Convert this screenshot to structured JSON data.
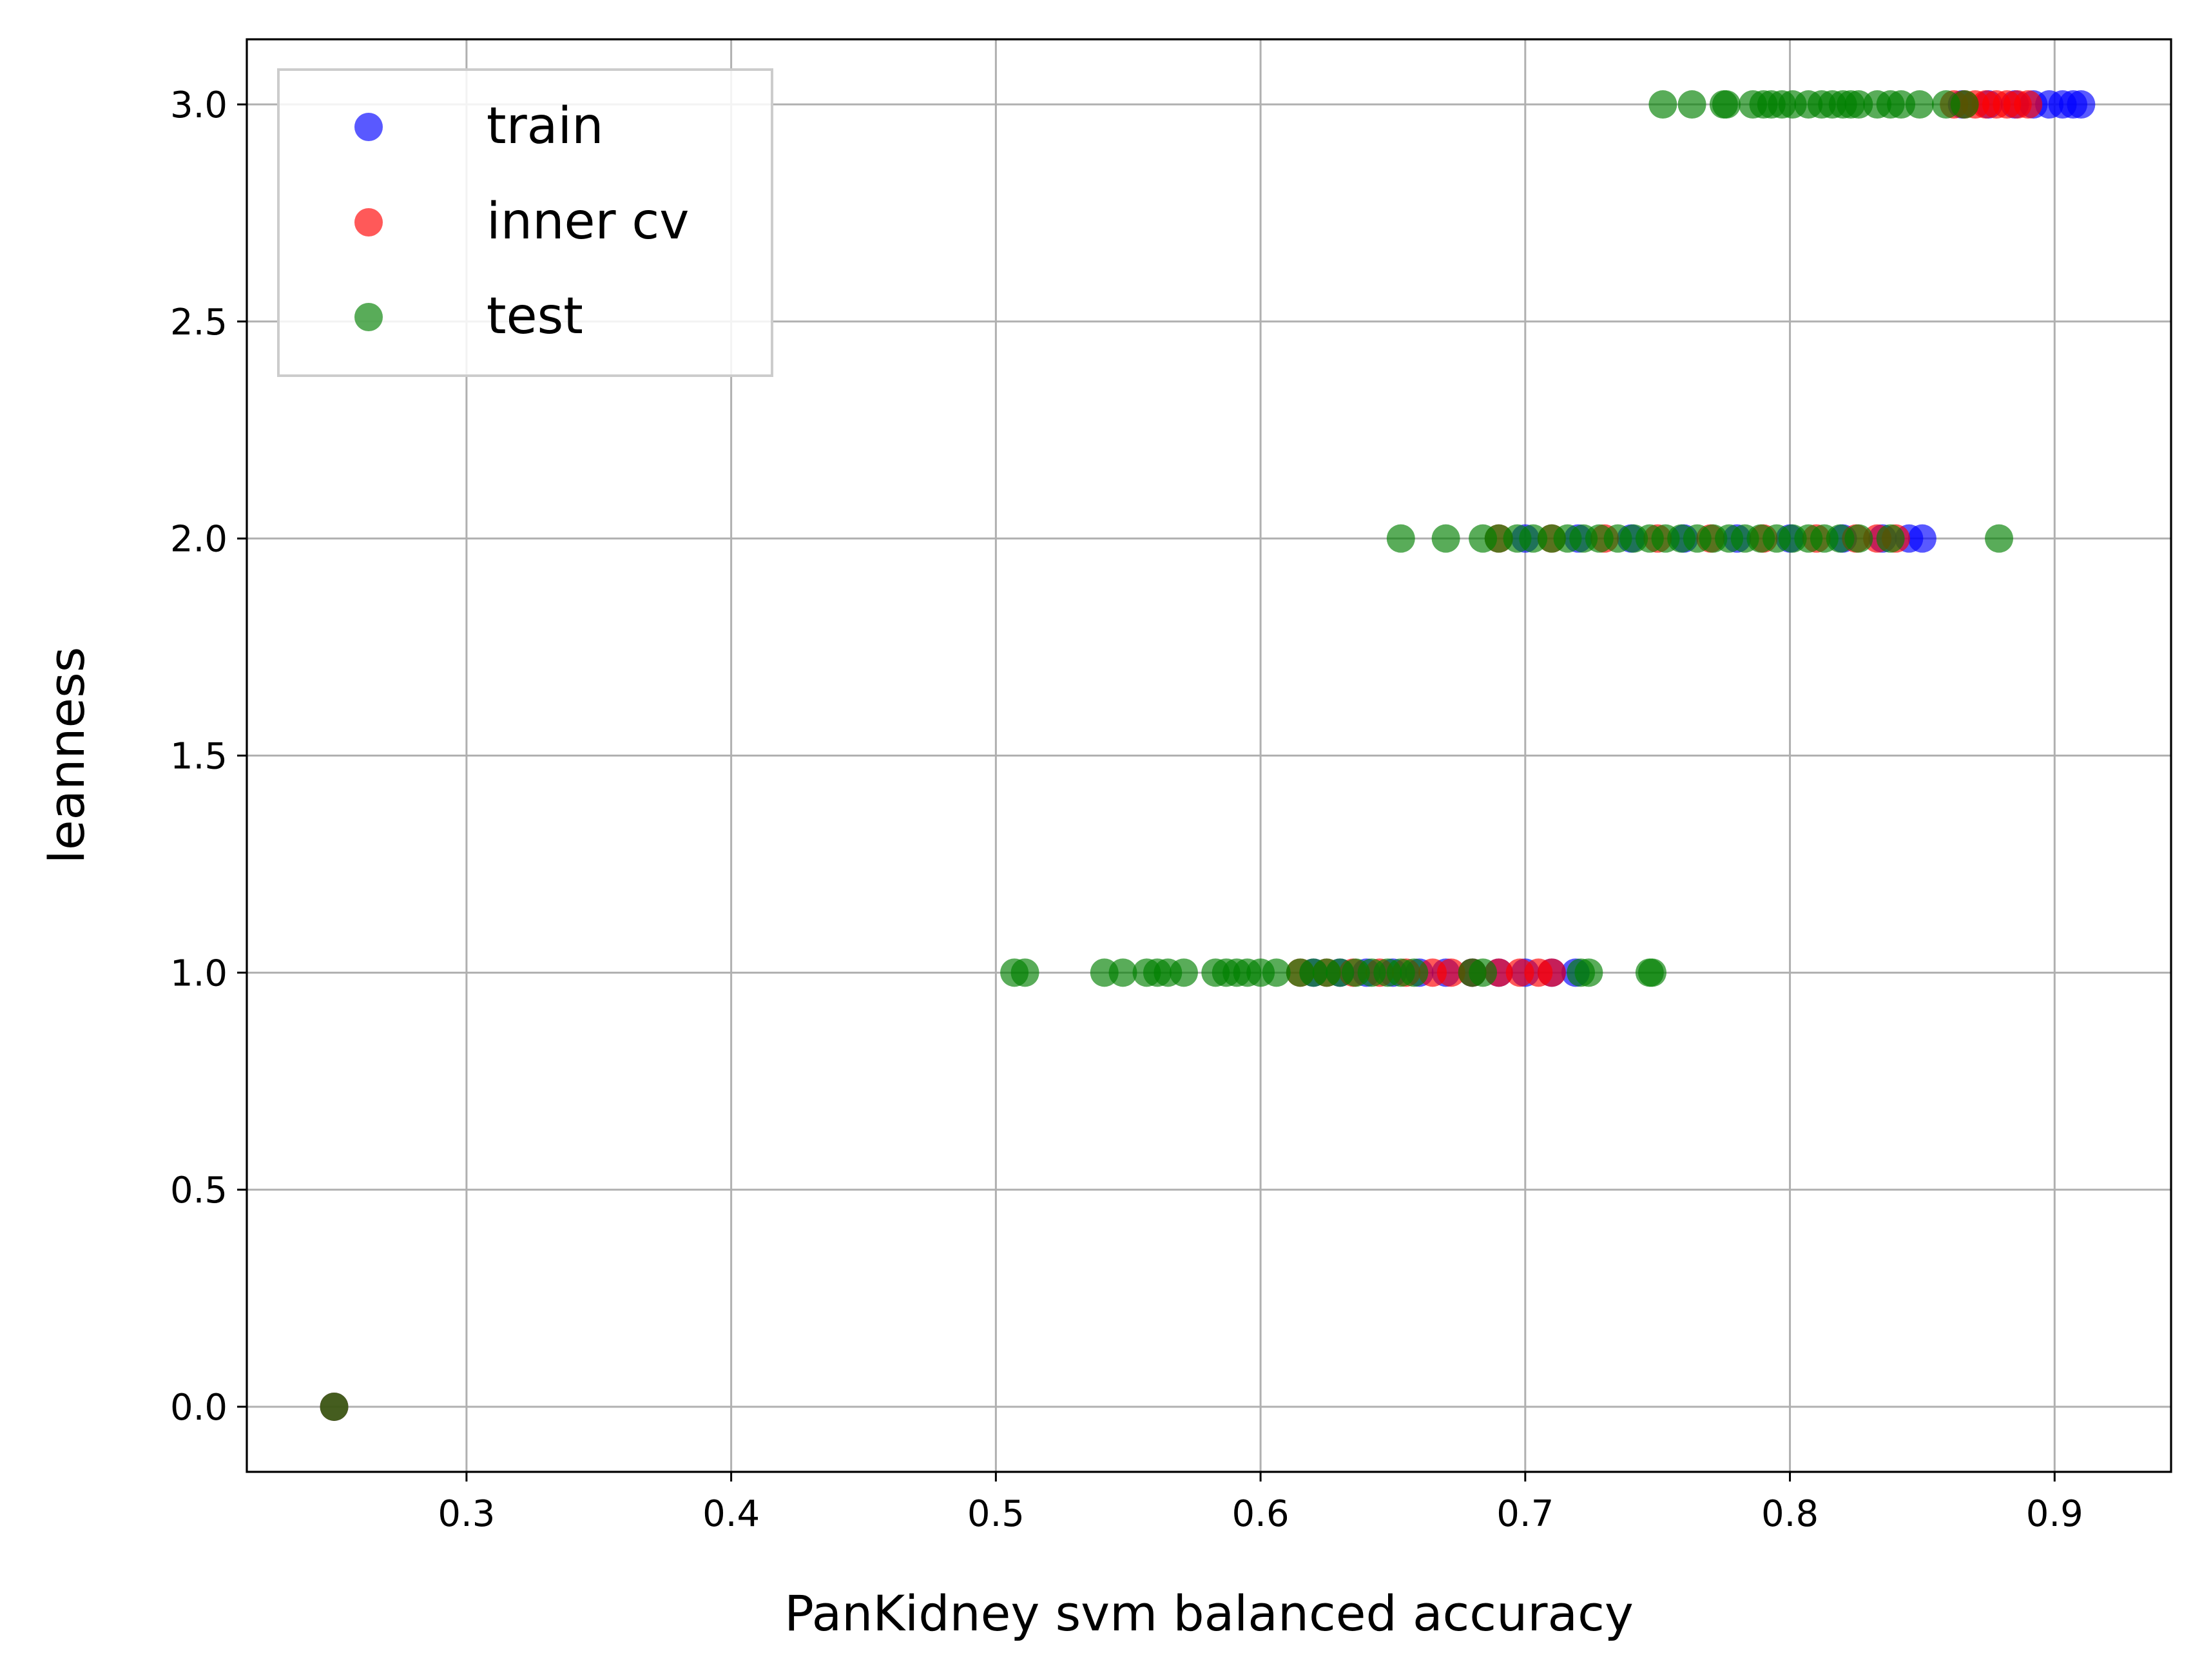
{
  "chart_data": {
    "type": "scatter",
    "title": "",
    "xlabel": "PanKidney svm balanced accuracy",
    "ylabel": "leanness",
    "xlim": [
      0.217,
      0.944
    ],
    "ylim": [
      -0.15,
      3.15
    ],
    "xticks": [
      0.3,
      0.4,
      0.5,
      0.6,
      0.7,
      0.8,
      0.9
    ],
    "xtick_labels": [
      "0.3",
      "0.4",
      "0.5",
      "0.6",
      "0.7",
      "0.8",
      "0.9"
    ],
    "yticks": [
      0.0,
      0.5,
      1.0,
      1.5,
      2.0,
      2.5,
      3.0
    ],
    "ytick_labels": [
      "0.0",
      "0.5",
      "1.0",
      "1.5",
      "2.0",
      "2.5",
      "3.0"
    ],
    "grid": true,
    "legend_position": "top-left",
    "series": [
      {
        "name": "train",
        "color": "#0000ff",
        "points": [
          {
            "x": 0.25,
            "y": 0
          },
          {
            "x": 0.62,
            "y": 1
          },
          {
            "x": 0.63,
            "y": 1
          },
          {
            "x": 0.64,
            "y": 1
          },
          {
            "x": 0.65,
            "y": 1
          },
          {
            "x": 0.66,
            "y": 1
          },
          {
            "x": 0.67,
            "y": 1
          },
          {
            "x": 0.68,
            "y": 1
          },
          {
            "x": 0.69,
            "y": 1
          },
          {
            "x": 0.7,
            "y": 1
          },
          {
            "x": 0.71,
            "y": 1
          },
          {
            "x": 0.719,
            "y": 1
          },
          {
            "x": 0.7,
            "y": 2
          },
          {
            "x": 0.72,
            "y": 2
          },
          {
            "x": 0.74,
            "y": 2
          },
          {
            "x": 0.76,
            "y": 2
          },
          {
            "x": 0.78,
            "y": 2
          },
          {
            "x": 0.8,
            "y": 2
          },
          {
            "x": 0.82,
            "y": 2
          },
          {
            "x": 0.835,
            "y": 2
          },
          {
            "x": 0.845,
            "y": 2
          },
          {
            "x": 0.85,
            "y": 2
          },
          {
            "x": 0.865,
            "y": 3
          },
          {
            "x": 0.875,
            "y": 3
          },
          {
            "x": 0.885,
            "y": 3
          },
          {
            "x": 0.892,
            "y": 3
          },
          {
            "x": 0.898,
            "y": 3
          },
          {
            "x": 0.903,
            "y": 3
          },
          {
            "x": 0.907,
            "y": 3
          },
          {
            "x": 0.91,
            "y": 3
          }
        ]
      },
      {
        "name": "inner cv",
        "color": "#ff0000",
        "points": [
          {
            "x": 0.25,
            "y": 0
          },
          {
            "x": 0.615,
            "y": 1
          },
          {
            "x": 0.625,
            "y": 1
          },
          {
            "x": 0.635,
            "y": 1
          },
          {
            "x": 0.645,
            "y": 1
          },
          {
            "x": 0.655,
            "y": 1
          },
          {
            "x": 0.665,
            "y": 1
          },
          {
            "x": 0.672,
            "y": 1
          },
          {
            "x": 0.68,
            "y": 1
          },
          {
            "x": 0.69,
            "y": 1
          },
          {
            "x": 0.698,
            "y": 1
          },
          {
            "x": 0.705,
            "y": 1
          },
          {
            "x": 0.71,
            "y": 1
          },
          {
            "x": 0.69,
            "y": 2
          },
          {
            "x": 0.71,
            "y": 2
          },
          {
            "x": 0.73,
            "y": 2
          },
          {
            "x": 0.75,
            "y": 2
          },
          {
            "x": 0.77,
            "y": 2
          },
          {
            "x": 0.79,
            "y": 2
          },
          {
            "x": 0.81,
            "y": 2
          },
          {
            "x": 0.825,
            "y": 2
          },
          {
            "x": 0.833,
            "y": 2
          },
          {
            "x": 0.84,
            "y": 2
          },
          {
            "x": 0.862,
            "y": 3
          },
          {
            "x": 0.866,
            "y": 3
          },
          {
            "x": 0.87,
            "y": 3
          },
          {
            "x": 0.874,
            "y": 3
          },
          {
            "x": 0.878,
            "y": 3
          },
          {
            "x": 0.882,
            "y": 3
          },
          {
            "x": 0.886,
            "y": 3
          },
          {
            "x": 0.89,
            "y": 3
          }
        ]
      },
      {
        "name": "test",
        "color": "#008000",
        "points": [
          {
            "x": 0.25,
            "y": 0
          },
          {
            "x": 0.507,
            "y": 1
          },
          {
            "x": 0.511,
            "y": 1
          },
          {
            "x": 0.541,
            "y": 1
          },
          {
            "x": 0.548,
            "y": 1
          },
          {
            "x": 0.557,
            "y": 1
          },
          {
            "x": 0.561,
            "y": 1
          },
          {
            "x": 0.565,
            "y": 1
          },
          {
            "x": 0.571,
            "y": 1
          },
          {
            "x": 0.583,
            "y": 1
          },
          {
            "x": 0.587,
            "y": 1
          },
          {
            "x": 0.591,
            "y": 1
          },
          {
            "x": 0.595,
            "y": 1
          },
          {
            "x": 0.6,
            "y": 1
          },
          {
            "x": 0.606,
            "y": 1
          },
          {
            "x": 0.615,
            "y": 1
          },
          {
            "x": 0.62,
            "y": 1
          },
          {
            "x": 0.625,
            "y": 1
          },
          {
            "x": 0.63,
            "y": 1
          },
          {
            "x": 0.636,
            "y": 1
          },
          {
            "x": 0.642,
            "y": 1
          },
          {
            "x": 0.648,
            "y": 1
          },
          {
            "x": 0.653,
            "y": 1
          },
          {
            "x": 0.658,
            "y": 1
          },
          {
            "x": 0.68,
            "y": 1
          },
          {
            "x": 0.684,
            "y": 1
          },
          {
            "x": 0.721,
            "y": 1
          },
          {
            "x": 0.724,
            "y": 1
          },
          {
            "x": 0.747,
            "y": 1
          },
          {
            "x": 0.748,
            "y": 1
          },
          {
            "x": 0.653,
            "y": 2
          },
          {
            "x": 0.67,
            "y": 2
          },
          {
            "x": 0.684,
            "y": 2
          },
          {
            "x": 0.69,
            "y": 2
          },
          {
            "x": 0.697,
            "y": 2
          },
          {
            "x": 0.703,
            "y": 2
          },
          {
            "x": 0.71,
            "y": 2
          },
          {
            "x": 0.716,
            "y": 2
          },
          {
            "x": 0.722,
            "y": 2
          },
          {
            "x": 0.728,
            "y": 2
          },
          {
            "x": 0.735,
            "y": 2
          },
          {
            "x": 0.741,
            "y": 2
          },
          {
            "x": 0.747,
            "y": 2
          },
          {
            "x": 0.753,
            "y": 2
          },
          {
            "x": 0.759,
            "y": 2
          },
          {
            "x": 0.765,
            "y": 2
          },
          {
            "x": 0.771,
            "y": 2
          },
          {
            "x": 0.777,
            "y": 2
          },
          {
            "x": 0.783,
            "y": 2
          },
          {
            "x": 0.789,
            "y": 2
          },
          {
            "x": 0.795,
            "y": 2
          },
          {
            "x": 0.801,
            "y": 2
          },
          {
            "x": 0.807,
            "y": 2
          },
          {
            "x": 0.813,
            "y": 2
          },
          {
            "x": 0.819,
            "y": 2
          },
          {
            "x": 0.826,
            "y": 2
          },
          {
            "x": 0.838,
            "y": 2
          },
          {
            "x": 0.879,
            "y": 2
          },
          {
            "x": 0.752,
            "y": 3
          },
          {
            "x": 0.763,
            "y": 3
          },
          {
            "x": 0.775,
            "y": 3
          },
          {
            "x": 0.776,
            "y": 3
          },
          {
            "x": 0.786,
            "y": 3
          },
          {
            "x": 0.79,
            "y": 3
          },
          {
            "x": 0.793,
            "y": 3
          },
          {
            "x": 0.797,
            "y": 3
          },
          {
            "x": 0.801,
            "y": 3
          },
          {
            "x": 0.807,
            "y": 3
          },
          {
            "x": 0.812,
            "y": 3
          },
          {
            "x": 0.816,
            "y": 3
          },
          {
            "x": 0.82,
            "y": 3
          },
          {
            "x": 0.823,
            "y": 3
          },
          {
            "x": 0.826,
            "y": 3
          },
          {
            "x": 0.833,
            "y": 3
          },
          {
            "x": 0.838,
            "y": 3
          },
          {
            "x": 0.842,
            "y": 3
          },
          {
            "x": 0.849,
            "y": 3
          },
          {
            "x": 0.859,
            "y": 3
          },
          {
            "x": 0.866,
            "y": 3
          }
        ]
      }
    ]
  }
}
